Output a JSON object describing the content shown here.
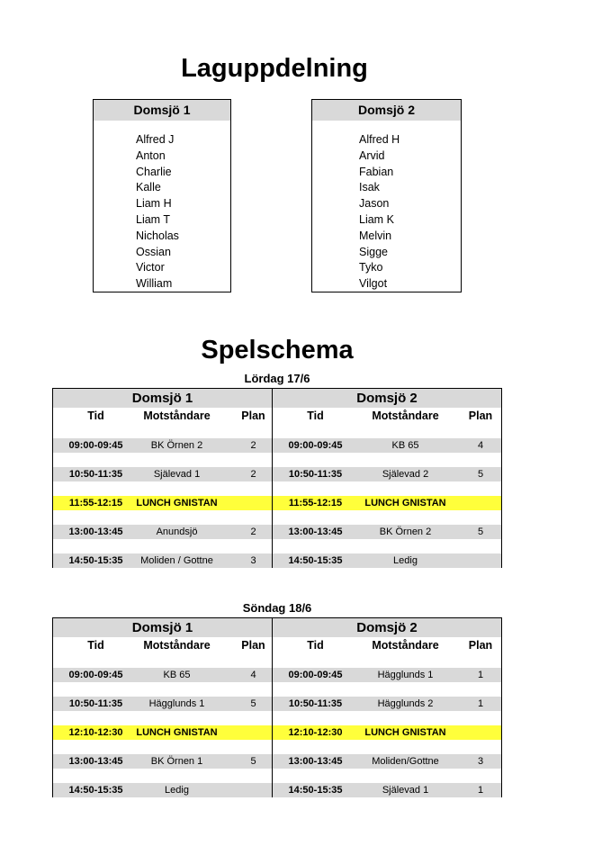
{
  "teams_title": "Laguppdelning",
  "teams": [
    {
      "name": "Domsjö 1",
      "players": [
        "Alfred J",
        "Anton",
        "Charlie",
        "Kalle",
        "Liam H",
        "Liam T",
        "Nicholas",
        "Ossian",
        "Victor",
        "William"
      ]
    },
    {
      "name": "Domsjö 2",
      "players": [
        "Alfred H",
        "Arvid",
        "Fabian",
        "Isak",
        "Jason",
        "Liam K",
        "Melvin",
        "Sigge",
        "Tyko",
        "Vilgot"
      ]
    }
  ],
  "schedule_title": "Spelschema",
  "columns": {
    "time": "Tid",
    "opponent": "Motståndare",
    "pitch": "Plan"
  },
  "days": [
    {
      "label": "Lördag 17/6",
      "teams": [
        {
          "name": "Domsjö 1",
          "rows": [
            {
              "time": "09:00-09:45",
              "opponent": "BK Örnen 2",
              "pitch": "2"
            },
            {
              "time": "10:50-11:35",
              "opponent": "Själevad 1",
              "pitch": "2"
            },
            {
              "time": "11:55-12:15",
              "opponent": "LUNCH GNISTAN",
              "pitch": "",
              "lunch": true
            },
            {
              "time": "13:00-13:45",
              "opponent": "Anundsjö",
              "pitch": "2"
            },
            {
              "time": "14:50-15:35",
              "opponent": "Moliden / Gottne",
              "pitch": "3"
            }
          ]
        },
        {
          "name": "Domsjö 2",
          "rows": [
            {
              "time": "09:00-09:45",
              "opponent": "KB 65",
              "pitch": "4"
            },
            {
              "time": "10:50-11:35",
              "opponent": "Själevad 2",
              "pitch": "5"
            },
            {
              "time": "11:55-12:15",
              "opponent": "LUNCH GNISTAN",
              "pitch": "",
              "lunch": true
            },
            {
              "time": "13:00-13:45",
              "opponent": "BK Örnen 2",
              "pitch": "5"
            },
            {
              "time": "14:50-15:35",
              "opponent": "Ledig",
              "pitch": ""
            }
          ]
        }
      ]
    },
    {
      "label": "Söndag 18/6",
      "teams": [
        {
          "name": "Domsjö 1",
          "rows": [
            {
              "time": "09:00-09:45",
              "opponent": "KB 65",
              "pitch": "4"
            },
            {
              "time": "10:50-11:35",
              "opponent": "Hägglunds 1",
              "pitch": "5"
            },
            {
              "time": "12:10-12:30",
              "opponent": "LUNCH GNISTAN",
              "pitch": "",
              "lunch": true
            },
            {
              "time": "13:00-13:45",
              "opponent": "BK Örnen 1",
              "pitch": "5"
            },
            {
              "time": "14:50-15:35",
              "opponent": "Ledig",
              "pitch": ""
            }
          ]
        },
        {
          "name": "Domsjö 2",
          "rows": [
            {
              "time": "09:00-09:45",
              "opponent": "Hägglunds 1",
              "pitch": "1"
            },
            {
              "time": "10:50-11:35",
              "opponent": "Hägglunds 2",
              "pitch": "1"
            },
            {
              "time": "12:10-12:30",
              "opponent": "LUNCH GNISTAN",
              "pitch": "",
              "lunch": true
            },
            {
              "time": "13:00-13:45",
              "opponent": "Moliden/Gottne",
              "pitch": "3"
            },
            {
              "time": "14:50-15:35",
              "opponent": "Själevad 1",
              "pitch": "1"
            }
          ]
        }
      ]
    }
  ],
  "colors": {
    "header_gray": "#d9d9d9",
    "lunch_yellow": "#ffff3b"
  }
}
